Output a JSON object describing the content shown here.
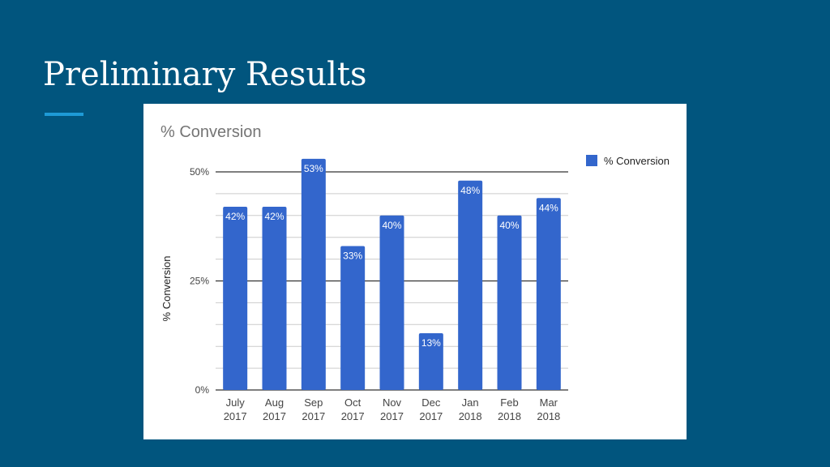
{
  "slide": {
    "title": "Preliminary Results",
    "accent_color": "#1e9ad6",
    "background_color": "#01557e"
  },
  "chart_data": {
    "type": "bar",
    "title": "% Conversion",
    "xlabel": "",
    "ylabel": "% Conversion",
    "categories": [
      [
        "July",
        "2017"
      ],
      [
        "Aug",
        "2017"
      ],
      [
        "Sep",
        "2017"
      ],
      [
        "Oct",
        "2017"
      ],
      [
        "Nov",
        "2017"
      ],
      [
        "Dec",
        "2017"
      ],
      [
        "Jan",
        "2018"
      ],
      [
        "Feb",
        "2018"
      ],
      [
        "Mar",
        "2018"
      ]
    ],
    "series": [
      {
        "name": "% Conversion",
        "color": "#3366cc",
        "values": [
          42,
          42,
          53,
          33,
          40,
          13,
          48,
          40,
          44
        ],
        "data_labels": [
          "42%",
          "42%",
          "53%",
          "33%",
          "40%",
          "13%",
          "48%",
          "40%",
          "44%"
        ]
      }
    ],
    "ylim": [
      0,
      50
    ],
    "yticks": [
      {
        "value": 0,
        "label": "0%"
      },
      {
        "value": 25,
        "label": "25%"
      },
      {
        "value": 50,
        "label": "50%"
      }
    ],
    "minor_grid_step": 5,
    "grid": true,
    "legend": "right"
  }
}
